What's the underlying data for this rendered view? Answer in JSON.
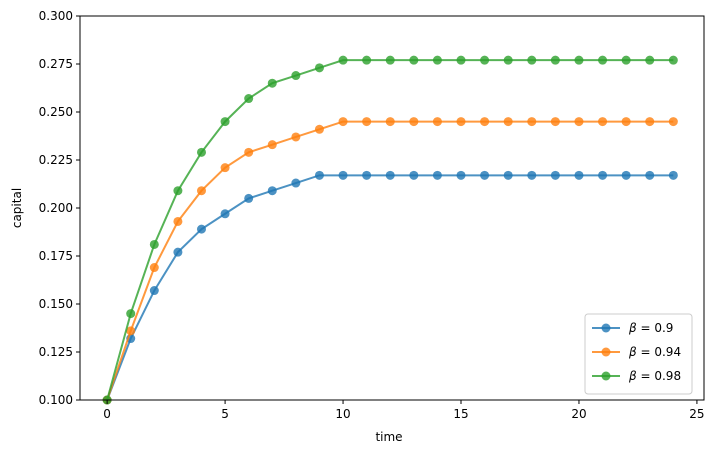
{
  "chart_data": {
    "type": "line",
    "title": "",
    "xlabel": "time",
    "ylabel": "capital",
    "xlim": [
      -1.15,
      25.3
    ],
    "ylim": [
      0.1,
      0.3
    ],
    "xticks": [
      0,
      5,
      10,
      15,
      20,
      25
    ],
    "xtick_labels": [
      "0",
      "5",
      "10",
      "15",
      "20",
      "25"
    ],
    "yticks": [
      0.1,
      0.125,
      0.15,
      0.175,
      0.2,
      0.225,
      0.25,
      0.275,
      0.3
    ],
    "ytick_labels": [
      "0.100",
      "0.125",
      "0.150",
      "0.175",
      "0.200",
      "0.225",
      "0.250",
      "0.275",
      "0.300"
    ],
    "grid": false,
    "legend_position": "bottom-right",
    "x": [
      0,
      1,
      2,
      3,
      4,
      5,
      6,
      7,
      8,
      9,
      10,
      11,
      12,
      13,
      14,
      15,
      16,
      17,
      18,
      19,
      20,
      21,
      22,
      23,
      24
    ],
    "series": [
      {
        "name": "β = 0.9",
        "greek": "β",
        "value_label": " = 0.9",
        "color": "#1f77b4",
        "values": [
          0.1,
          0.132,
          0.157,
          0.177,
          0.189,
          0.197,
          0.205,
          0.209,
          0.213,
          0.217,
          0.217,
          0.217,
          0.217,
          0.217,
          0.217,
          0.217,
          0.217,
          0.217,
          0.217,
          0.217,
          0.217,
          0.217,
          0.217,
          0.217,
          0.217
        ]
      },
      {
        "name": "β = 0.94",
        "greek": "β",
        "value_label": " = 0.94",
        "color": "#ff7f0e",
        "values": [
          0.1,
          0.136,
          0.169,
          0.193,
          0.209,
          0.221,
          0.229,
          0.233,
          0.237,
          0.241,
          0.245,
          0.245,
          0.245,
          0.245,
          0.245,
          0.245,
          0.245,
          0.245,
          0.245,
          0.245,
          0.245,
          0.245,
          0.245,
          0.245,
          0.245
        ]
      },
      {
        "name": "β = 0.98",
        "greek": "β",
        "value_label": " = 0.98",
        "color": "#2ca02c",
        "values": [
          0.1,
          0.145,
          0.181,
          0.209,
          0.229,
          0.245,
          0.257,
          0.265,
          0.269,
          0.273,
          0.277,
          0.277,
          0.277,
          0.277,
          0.277,
          0.277,
          0.277,
          0.277,
          0.277,
          0.277,
          0.277,
          0.277,
          0.277,
          0.277,
          0.277
        ]
      }
    ]
  }
}
